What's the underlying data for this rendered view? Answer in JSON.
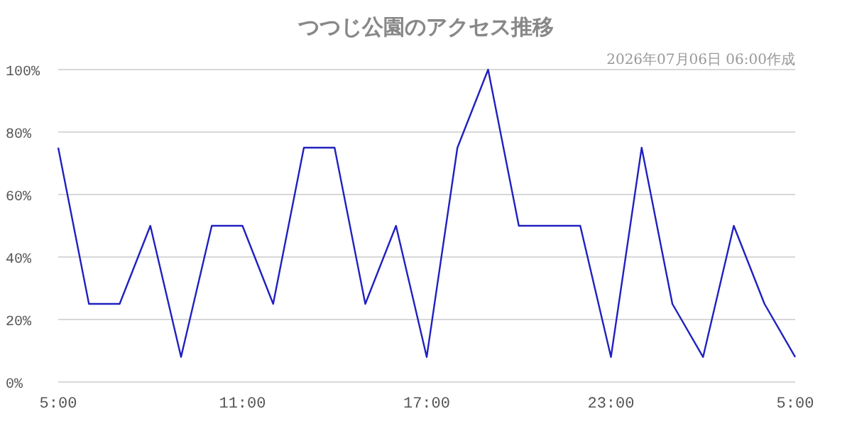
{
  "chart_data": {
    "type": "line",
    "title": "つつじ公園のアクセス推移",
    "subtitle": "2026年07月06日 06:00作成",
    "x": [
      "2026-07-05T05:00",
      "2026-07-05T06:00",
      "2026-07-05T07:00",
      "2026-07-05T08:00",
      "2026-07-05T09:00",
      "2026-07-05T10:00",
      "2026-07-05T11:00",
      "2026-07-05T12:00",
      "2026-07-05T13:00",
      "2026-07-05T14:00",
      "2026-07-05T15:00",
      "2026-07-05T16:00",
      "2026-07-05T17:00",
      "2026-07-05T18:00",
      "2026-07-05T19:00",
      "2026-07-05T20:00",
      "2026-07-05T21:00",
      "2026-07-05T22:00",
      "2026-07-05T23:00",
      "2026-07-06T00:00",
      "2026-07-06T01:00",
      "2026-07-06T02:00",
      "2026-07-06T03:00",
      "2026-07-06T04:00",
      "2026-07-06T05:00"
    ],
    "series": [
      {
        "color": "#2020c0",
        "values": [
          75,
          25,
          25,
          50,
          8,
          50,
          50,
          25,
          75,
          75,
          25,
          50,
          8,
          75,
          100,
          50,
          50,
          50,
          8,
          75,
          25,
          8,
          50,
          25,
          8
        ]
      }
    ],
    "xlim": [
      "2026-07-05T05:00",
      "2026-07-06T05:00"
    ],
    "xticks": [
      {
        "value": "2026-07-05T05:00",
        "label": "5:00"
      },
      {
        "value": "2026-07-05T11:00",
        "label": "11:00"
      },
      {
        "value": "2026-07-05T17:00",
        "label": "17:00"
      },
      {
        "value": "2026-07-05T23:00",
        "label": "23:00"
      },
      {
        "value": "2026-07-06T05:00",
        "label": "5:00"
      }
    ],
    "ylim": [
      0,
      100
    ],
    "yticks": [
      {
        "value": 0,
        "label": "0%"
      },
      {
        "value": 20,
        "label": "20%"
      },
      {
        "value": 40,
        "label": "40%"
      },
      {
        "value": 60,
        "label": "60%"
      },
      {
        "value": 80,
        "label": "80%"
      },
      {
        "value": 100,
        "label": "100%"
      }
    ],
    "grid": "y",
    "marker": "none",
    "line_style": "solid"
  }
}
